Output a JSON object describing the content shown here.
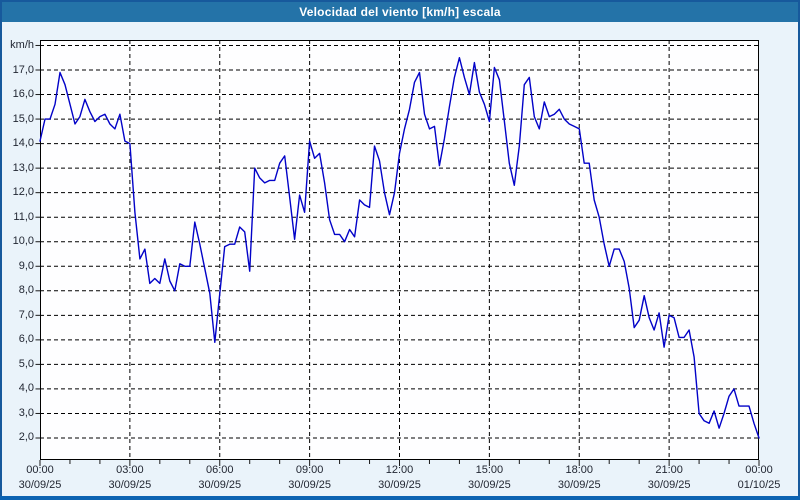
{
  "window": {
    "title": "Velocidad del viento [km/h] escala"
  },
  "colors": {
    "title_bar": "#2473A8",
    "title_text": "#FFFFFF",
    "window_bg": "#EAF3FA",
    "window_border": "#17599C",
    "window_border_bottom": "#0C63B2",
    "plot_bg": "#FEFEFF",
    "grid": "#000000",
    "frame": "#000000",
    "tick": "#1A1A1A",
    "line": "#0202C8",
    "label_text": "#222733"
  },
  "axes": {
    "y_unit_label": "km/h",
    "y_ticks": [
      {
        "value": 17,
        "label": "17,0"
      },
      {
        "value": 16,
        "label": "16,0"
      },
      {
        "value": 15,
        "label": "15,0"
      },
      {
        "value": 14,
        "label": "14,0"
      },
      {
        "value": 13,
        "label": "13,0"
      },
      {
        "value": 12,
        "label": "12,0"
      },
      {
        "value": 11,
        "label": "11,0"
      },
      {
        "value": 10,
        "label": "10,0"
      },
      {
        "value": 9,
        "label": "9,0"
      },
      {
        "value": 8,
        "label": "8,0"
      },
      {
        "value": 7,
        "label": "7,0"
      },
      {
        "value": 6,
        "label": "6,0"
      },
      {
        "value": 5,
        "label": "5,0"
      },
      {
        "value": 4,
        "label": "4,0"
      },
      {
        "value": 3,
        "label": "3,0"
      },
      {
        "value": 2,
        "label": "2,0"
      }
    ],
    "y_gridline_min": 2,
    "y_gridline_max": 18,
    "x_ticks": [
      {
        "hour": 0,
        "time": "00:00",
        "date": "30/09/25"
      },
      {
        "hour": 3,
        "time": "03:00",
        "date": "30/09/25"
      },
      {
        "hour": 6,
        "time": "06:00",
        "date": "30/09/25"
      },
      {
        "hour": 9,
        "time": "09:00",
        "date": "30/09/25"
      },
      {
        "hour": 12,
        "time": "12:00",
        "date": "30/09/25"
      },
      {
        "hour": 15,
        "time": "15:00",
        "date": "30/09/25"
      },
      {
        "hour": 18,
        "time": "18:00",
        "date": "30/09/25"
      },
      {
        "hour": 21,
        "time": "21:00",
        "date": "30/09/25"
      },
      {
        "hour": 24,
        "time": "00:00",
        "date": "01/10/25"
      }
    ],
    "minor_tick_every_hours": 1
  },
  "chart_data": {
    "type": "line",
    "title": "Velocidad del viento [km/h] escala",
    "xlabel": "",
    "ylabel": "km/h",
    "legend": false,
    "grid": "dashed",
    "x_start_hour": 0,
    "x_step_hours": 0.16667,
    "x_span_hours": 24,
    "x_tick_labels": [
      "00:00",
      "03:00",
      "06:00",
      "09:00",
      "12:00",
      "15:00",
      "18:00",
      "21:00",
      "00:00"
    ],
    "x_tick_dates": [
      "30/09/25",
      "30/09/25",
      "30/09/25",
      "30/09/25",
      "30/09/25",
      "30/09/25",
      "30/09/25",
      "30/09/25",
      "01/10/25"
    ],
    "ylim": [
      1.1,
      18.2
    ],
    "y_tick_step": 1,
    "series": [
      {
        "name": "Velocidad del viento [km/h]",
        "values": [
          14.1,
          15.0,
          15.0,
          15.6,
          16.9,
          16.4,
          15.6,
          14.8,
          15.1,
          15.8,
          15.3,
          14.9,
          15.1,
          15.2,
          14.8,
          14.6,
          15.2,
          14.1,
          14.0,
          11.2,
          9.3,
          9.7,
          8.3,
          8.5,
          8.3,
          9.3,
          8.4,
          8.0,
          9.1,
          9.0,
          9.0,
          10.8,
          9.9,
          8.9,
          7.9,
          5.9,
          7.9,
          9.8,
          9.9,
          9.9,
          10.6,
          10.4,
          8.8,
          13.0,
          12.6,
          12.4,
          12.5,
          12.5,
          13.2,
          13.5,
          11.8,
          10.1,
          11.9,
          11.2,
          14.1,
          13.4,
          13.6,
          12.4,
          10.9,
          10.3,
          10.3,
          10.0,
          10.5,
          10.2,
          11.7,
          11.5,
          11.4,
          13.9,
          13.3,
          12.0,
          11.1,
          12.0,
          13.6,
          14.6,
          15.4,
          16.5,
          16.9,
          15.2,
          14.6,
          14.7,
          13.1,
          14.2,
          15.5,
          16.7,
          17.5,
          16.7,
          16.0,
          17.3,
          16.1,
          15.6,
          14.9,
          17.1,
          16.6,
          14.9,
          13.2,
          12.3,
          13.9,
          16.4,
          16.7,
          15.1,
          14.6,
          15.7,
          15.1,
          15.2,
          15.4,
          15.0,
          14.8,
          14.7,
          14.6,
          13.2,
          13.2,
          11.7,
          11.0,
          9.9,
          9.0,
          9.7,
          9.7,
          9.2,
          8.1,
          6.5,
          6.8,
          7.8,
          6.9,
          6.4,
          7.1,
          5.7,
          7.0,
          6.9,
          6.1,
          6.1,
          6.4,
          5.3,
          3.0,
          2.7,
          2.6,
          3.1,
          2.4,
          3.0,
          3.7,
          4.0,
          3.3,
          3.3,
          3.3,
          2.6,
          2.0
        ]
      }
    ]
  }
}
